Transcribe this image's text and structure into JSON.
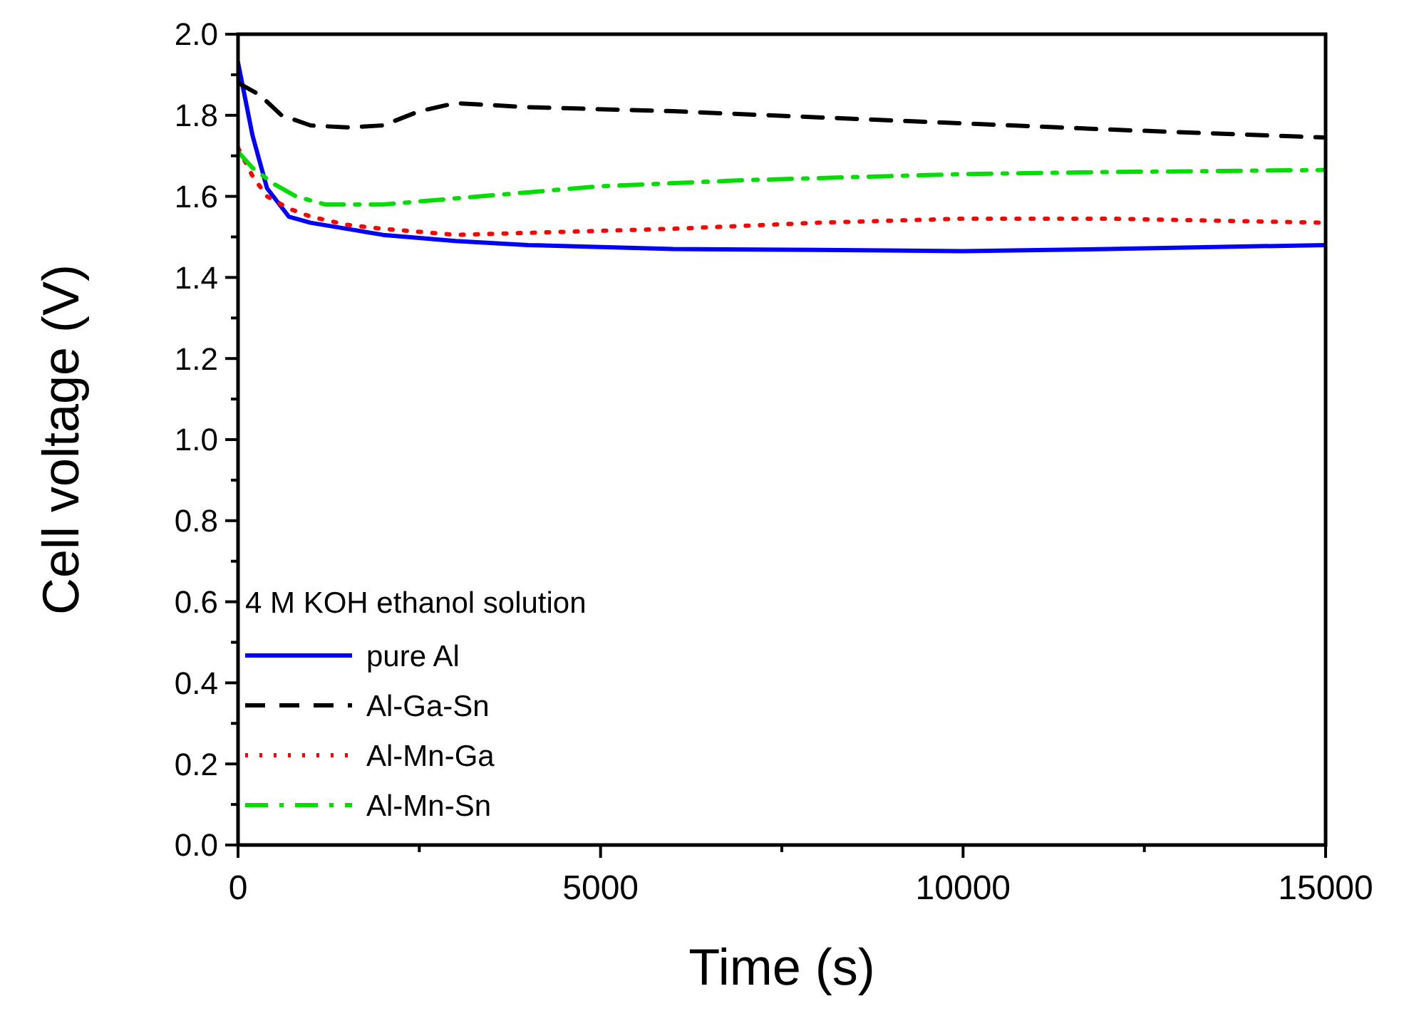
{
  "chart_data": {
    "type": "line",
    "xlabel": "Time (s)",
    "ylabel": "Cell voltage (V)",
    "legend_title": "4 M KOH ethanol solution",
    "legend": "bottom left",
    "xlim": [
      0,
      15000
    ],
    "xticks": [
      0,
      5000,
      10000,
      15000
    ],
    "ylim": [
      0,
      2
    ],
    "yticks": [
      {
        "value": 0,
        "label": "0.0"
      },
      {
        "value": 0.2,
        "label": "0.2"
      },
      {
        "value": 0.4,
        "label": "0.4"
      },
      {
        "value": 0.6,
        "label": "0.6"
      },
      {
        "value": 0.8,
        "label": "0.8"
      },
      {
        "value": 1,
        "label": "1.0"
      },
      {
        "value": 1.2,
        "label": "1.2"
      },
      {
        "value": 1.4,
        "label": "1.4"
      },
      {
        "value": 1.6,
        "label": "1.6"
      },
      {
        "value": 1.8,
        "label": "1.8"
      },
      {
        "value": 2,
        "label": "2.0"
      }
    ],
    "grid": false,
    "series": [
      {
        "name": "pure Al",
        "color": "#0000ff",
        "line_style": "solid",
        "x": [
          0,
          200,
          400,
          700,
          1000,
          1500,
          2000,
          3000,
          4000,
          6000,
          8000,
          10000,
          12000,
          15000
        ],
        "values": [
          1.93,
          1.75,
          1.62,
          1.55,
          1.535,
          1.52,
          1.505,
          1.49,
          1.48,
          1.47,
          1.468,
          1.465,
          1.47,
          1.48
        ]
      },
      {
        "name": "Al-Ga-Sn",
        "color": "#000000",
        "line_style": "dashed",
        "x": [
          0,
          300,
          600,
          1000,
          1500,
          2000,
          2500,
          3000,
          4000,
          6000,
          8000,
          10000,
          12000,
          15000
        ],
        "values": [
          1.88,
          1.85,
          1.8,
          1.775,
          1.77,
          1.775,
          1.81,
          1.83,
          1.82,
          1.81,
          1.795,
          1.78,
          1.765,
          1.745
        ]
      },
      {
        "name": "Al-Mn-Ga",
        "color": "#ff0000",
        "line_style": "dotted",
        "x": [
          0,
          200,
          400,
          700,
          1000,
          1500,
          2000,
          3000,
          4000,
          6000,
          8000,
          10000,
          12000,
          15000
        ],
        "values": [
          1.72,
          1.65,
          1.6,
          1.57,
          1.55,
          1.53,
          1.52,
          1.505,
          1.51,
          1.52,
          1.535,
          1.545,
          1.545,
          1.535
        ]
      },
      {
        "name": "Al-Mn-Sn",
        "color": "#00dd00",
        "line_style": "dashdot",
        "x": [
          0,
          200,
          500,
          800,
          1200,
          2000,
          3000,
          4000,
          5000,
          7000,
          9000,
          10000,
          12000,
          15000
        ],
        "values": [
          1.71,
          1.67,
          1.63,
          1.6,
          1.58,
          1.58,
          1.595,
          1.61,
          1.625,
          1.64,
          1.65,
          1.655,
          1.66,
          1.665
        ]
      }
    ]
  }
}
